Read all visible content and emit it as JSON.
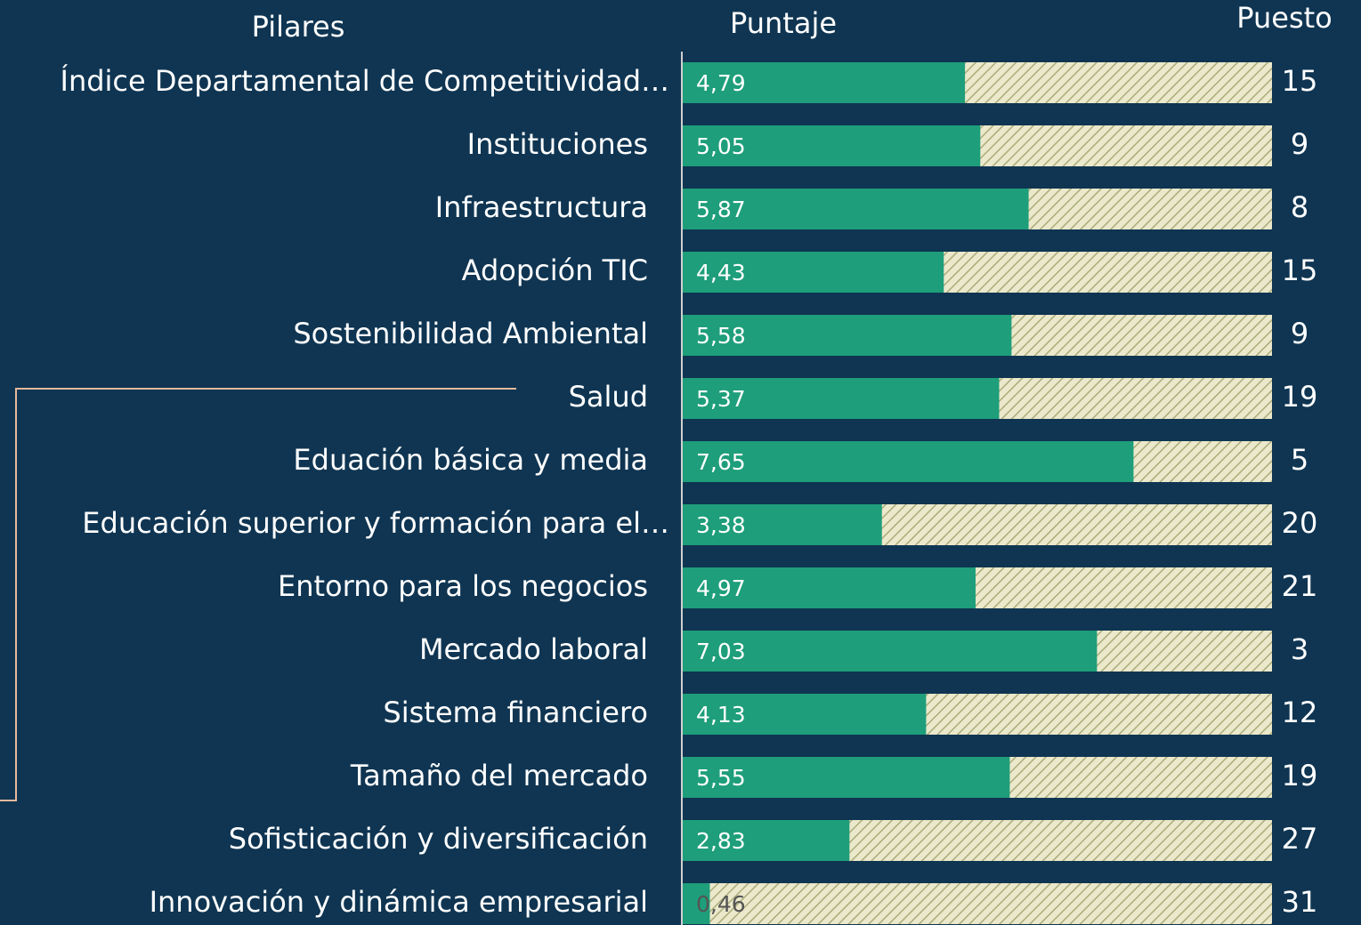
{
  "chart_data": {
    "type": "bar",
    "headers": [
      "Pilares",
      "Puntaje",
      "Puesto"
    ],
    "categories": [
      "Índice Departamental de Competitividad…",
      "Instituciones",
      "Infraestructura",
      "Adopción TIC",
      "Sostenibilidad Ambiental",
      "Salud",
      "Eduación básica y media",
      "Educación superior y formación para el…",
      "Entorno para los negocios",
      "Mercado laboral",
      "Sistema financiero",
      "Tamaño del mercado",
      "Sofisticación y diversificación",
      "Innovación y dinámica empresarial"
    ],
    "values": [
      4.79,
      5.05,
      5.87,
      4.43,
      5.58,
      5.37,
      7.65,
      3.38,
      4.97,
      7.03,
      4.13,
      5.55,
      2.83,
      0.46
    ],
    "value_labels": [
      "4,79",
      "5,05",
      "5,87",
      "4,43",
      "5,58",
      "5,37",
      "7,65",
      "3,38",
      "4,97",
      "7,03",
      "4,13",
      "5,55",
      "2,83",
      "0,46"
    ],
    "ranks": [
      15,
      9,
      8,
      15,
      9,
      19,
      5,
      20,
      21,
      3,
      12,
      19,
      27,
      31
    ],
    "color": "#1e9e7a",
    "xlim": [
      0,
      10
    ]
  }
}
